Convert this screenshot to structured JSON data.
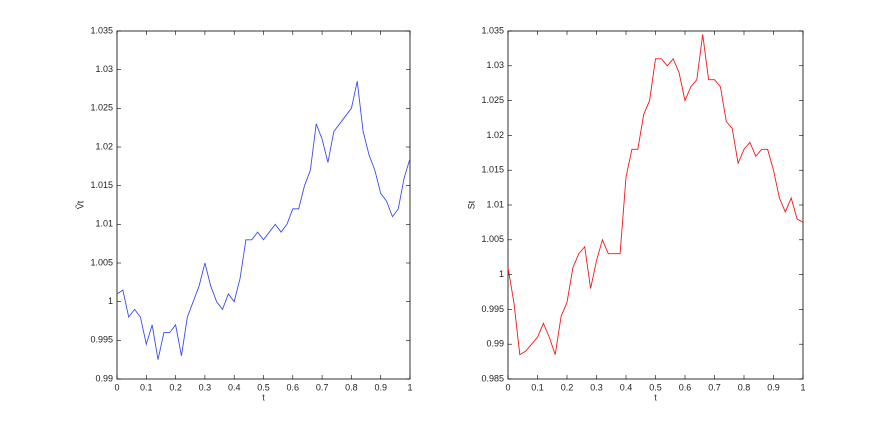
{
  "chart_data": [
    {
      "type": "line",
      "x_label": "t",
      "y_label": "Ṽt",
      "x": [
        0,
        0.02,
        0.04,
        0.06,
        0.08,
        0.1,
        0.12,
        0.14,
        0.16,
        0.18,
        0.2,
        0.22,
        0.24,
        0.26,
        0.28,
        0.3,
        0.32,
        0.34,
        0.36,
        0.38,
        0.4,
        0.42,
        0.44,
        0.46,
        0.48,
        0.5,
        0.52,
        0.54,
        0.56,
        0.58,
        0.6,
        0.62,
        0.64,
        0.66,
        0.68,
        0.7,
        0.72,
        0.74,
        0.76,
        0.78,
        0.8,
        0.82,
        0.84,
        0.86,
        0.88,
        0.9,
        0.92,
        0.94,
        0.96,
        0.98,
        1
      ],
      "series": [
        {
          "color": "#3a4df0",
          "values": [
            1.001,
            1.0015,
            0.998,
            0.999,
            0.998,
            0.9945,
            0.997,
            0.9925,
            0.996,
            0.996,
            0.997,
            0.993,
            0.998,
            1.0,
            1.002,
            1.005,
            1.002,
            1.0,
            0.999,
            1.001,
            1.0,
            1.003,
            1.008,
            1.008,
            1.009,
            1.008,
            1.009,
            1.01,
            1.009,
            1.01,
            1.012,
            1.012,
            1.015,
            1.017,
            1.023,
            1.021,
            1.018,
            1.022,
            1.023,
            1.024,
            1.025,
            1.0285,
            1.022,
            1.019,
            1.017,
            1.014,
            1.013,
            1.011,
            1.012,
            1.016,
            1.0185
          ]
        }
      ],
      "xlim": [
        0,
        1
      ],
      "xticks": [
        0,
        0.1,
        0.2,
        0.3,
        0.4,
        0.5,
        0.6,
        0.7,
        0.8,
        0.9,
        1
      ],
      "ylim": [
        0.99,
        1.035
      ],
      "yticks": [
        0.99,
        0.995,
        1,
        1.005,
        1.01,
        1.015,
        1.02,
        1.025,
        1.03,
        1.035
      ]
    },
    {
      "type": "line",
      "x_label": "t",
      "y_label": "St",
      "x": [
        0,
        0.02,
        0.04,
        0.06,
        0.08,
        0.1,
        0.12,
        0.14,
        0.16,
        0.18,
        0.2,
        0.22,
        0.24,
        0.26,
        0.28,
        0.3,
        0.32,
        0.34,
        0.36,
        0.38,
        0.4,
        0.42,
        0.44,
        0.46,
        0.48,
        0.5,
        0.52,
        0.54,
        0.56,
        0.58,
        0.6,
        0.62,
        0.64,
        0.66,
        0.68,
        0.7,
        0.72,
        0.74,
        0.76,
        0.78,
        0.8,
        0.82,
        0.84,
        0.86,
        0.88,
        0.9,
        0.92,
        0.94,
        0.96,
        0.98,
        1
      ],
      "series": [
        {
          "color": "#f01818",
          "values": [
            1.001,
            0.996,
            0.9885,
            0.989,
            0.99,
            0.991,
            0.993,
            0.991,
            0.9885,
            0.994,
            0.996,
            1.001,
            1.003,
            1.004,
            0.998,
            1.002,
            1.005,
            1.003,
            1.003,
            1.003,
            1.014,
            1.018,
            1.018,
            1.023,
            1.025,
            1.031,
            1.031,
            1.03,
            1.031,
            1.029,
            1.025,
            1.027,
            1.028,
            1.0345,
            1.028,
            1.028,
            1.027,
            1.022,
            1.021,
            1.016,
            1.018,
            1.019,
            1.017,
            1.018,
            1.018,
            1.015,
            1.011,
            1.009,
            1.011,
            1.008,
            1.0075
          ]
        }
      ],
      "xlim": [
        0,
        1
      ],
      "xticks": [
        0,
        0.1,
        0.2,
        0.3,
        0.4,
        0.5,
        0.6,
        0.7,
        0.8,
        0.9,
        1
      ],
      "ylim": [
        0.985,
        1.035
      ],
      "yticks": [
        0.985,
        0.99,
        0.995,
        1,
        1.005,
        1.01,
        1.015,
        1.02,
        1.025,
        1.03,
        1.035
      ]
    }
  ]
}
